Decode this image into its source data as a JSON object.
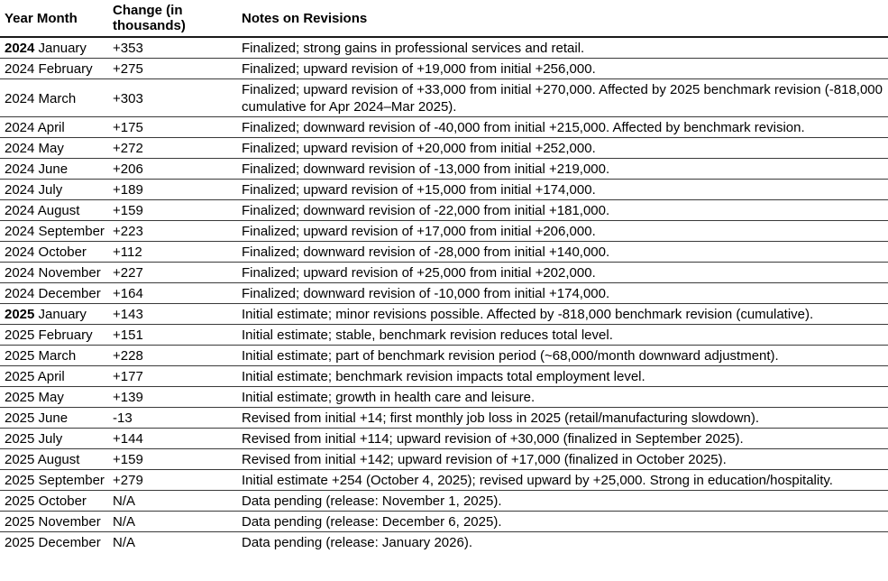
{
  "colors": {
    "text": "#000000",
    "row_border": "#3a3a3a",
    "header_border": "#1a1a1a",
    "background": "#ffffff"
  },
  "table": {
    "columns": [
      {
        "label": "Year Month"
      },
      {
        "label": "Change (in thousands)"
      },
      {
        "label": "Notes on Revisions"
      }
    ],
    "rows": [
      {
        "year": "2024",
        "month": "January",
        "year_start": true,
        "change": "+353",
        "note": "Finalized; strong gains in professional services and retail."
      },
      {
        "year": "2024",
        "month": "February",
        "year_start": false,
        "change": "+275",
        "note": "Finalized; upward revision of +19,000 from initial +256,000."
      },
      {
        "year": "2024",
        "month": "March",
        "year_start": false,
        "change": "+303",
        "note": "Finalized; upward revision of +33,000 from initial +270,000. Affected by 2025 benchmark revision (-818,000 cumulative for Apr 2024–Mar 2025)."
      },
      {
        "year": "2024",
        "month": "April",
        "year_start": false,
        "change": "+175",
        "note": "Finalized; downward revision of -40,000 from initial +215,000. Affected by benchmark revision."
      },
      {
        "year": "2024",
        "month": "May",
        "year_start": false,
        "change": "+272",
        "note": "Finalized; upward revision of +20,000 from initial +252,000."
      },
      {
        "year": "2024",
        "month": "June",
        "year_start": false,
        "change": "+206",
        "note": "Finalized; downward revision of -13,000 from initial +219,000."
      },
      {
        "year": "2024",
        "month": "July",
        "year_start": false,
        "change": "+189",
        "note": "Finalized; upward revision of +15,000 from initial +174,000."
      },
      {
        "year": "2024",
        "month": "August",
        "year_start": false,
        "change": "+159",
        "note": "Finalized; downward revision of -22,000 from initial +181,000."
      },
      {
        "year": "2024",
        "month": "September",
        "year_start": false,
        "change": "+223",
        "note": "Finalized; upward revision of +17,000 from initial +206,000."
      },
      {
        "year": "2024",
        "month": "October",
        "year_start": false,
        "change": "+112",
        "note": "Finalized; downward revision of -28,000 from initial +140,000."
      },
      {
        "year": "2024",
        "month": "November",
        "year_start": false,
        "change": "+227",
        "note": "Finalized; upward revision of +25,000 from initial +202,000."
      },
      {
        "year": "2024",
        "month": "December",
        "year_start": false,
        "change": "+164",
        "note": "Finalized; downward revision of -10,000 from initial +174,000."
      },
      {
        "year": "2025",
        "month": "January",
        "year_start": true,
        "change": "+143",
        "note": "Initial estimate; minor revisions possible. Affected by -818,000 benchmark revision (cumulative)."
      },
      {
        "year": "2025",
        "month": "February",
        "year_start": false,
        "change": "+151",
        "note": "Initial estimate; stable, benchmark revision reduces total level."
      },
      {
        "year": "2025",
        "month": "March",
        "year_start": false,
        "change": "+228",
        "note": "Initial estimate; part of benchmark revision period (~68,000/month downward adjustment)."
      },
      {
        "year": "2025",
        "month": "April",
        "year_start": false,
        "change": "+177",
        "note": "Initial estimate; benchmark revision impacts total employment level."
      },
      {
        "year": "2025",
        "month": "May",
        "year_start": false,
        "change": "+139",
        "note": "Initial estimate; growth in health care and leisure."
      },
      {
        "year": "2025",
        "month": "June",
        "year_start": false,
        "change": "-13",
        "note": "Revised from initial +14; first monthly job loss in 2025 (retail/manufacturing slowdown)."
      },
      {
        "year": "2025",
        "month": "July",
        "year_start": false,
        "change": "+144",
        "note": "Revised from initial +114; upward revision of +30,000 (finalized in September 2025)."
      },
      {
        "year": "2025",
        "month": "August",
        "year_start": false,
        "change": "+159",
        "note": "Revised from initial +142; upward revision of +17,000 (finalized in October 2025)."
      },
      {
        "year": "2025",
        "month": "September",
        "year_start": false,
        "change": "+279",
        "note": "Initial estimate +254 (October 4, 2025); revised upward by +25,000. Strong in education/hospitality."
      },
      {
        "year": "2025",
        "month": "October",
        "year_start": false,
        "change": "N/A",
        "note": "Data pending (release: November 1, 2025)."
      },
      {
        "year": "2025",
        "month": "November",
        "year_start": false,
        "change": "N/A",
        "note": "Data pending (release: December 6, 2025)."
      },
      {
        "year": "2025",
        "month": "December",
        "year_start": false,
        "change": "N/A",
        "note": "Data pending (release: January 2026)."
      }
    ]
  }
}
